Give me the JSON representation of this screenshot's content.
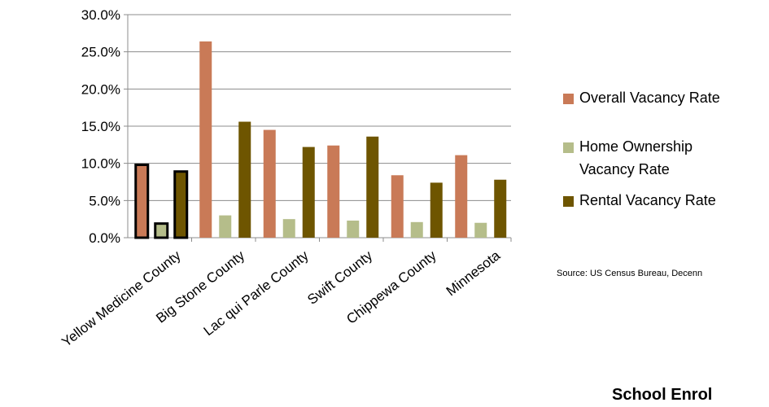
{
  "chart_data": {
    "type": "bar",
    "categories": [
      "Yellow Medicine County",
      "Big Stone County",
      "Lac qui Parle County",
      "Swift County",
      "Chippewa County",
      "Minnesota"
    ],
    "series": [
      {
        "name": "Overall Vacancy Rate",
        "color": "#C97A57",
        "values": [
          9.8,
          26.4,
          14.5,
          12.4,
          8.4,
          11.1
        ]
      },
      {
        "name": "Home Ownership Vacancy Rate",
        "color": "#B5BD8A",
        "values": [
          1.9,
          3.0,
          2.5,
          2.3,
          2.1,
          2.0
        ]
      },
      {
        "name": "Rental Vacancy Rate",
        "color": "#6E5500",
        "values": [
          8.9,
          15.6,
          12.2,
          13.6,
          7.4,
          7.8
        ]
      }
    ],
    "ylim": [
      0,
      30
    ],
    "yticks": [
      "0.0%",
      "5.0%",
      "10.0%",
      "15.0%",
      "20.0%",
      "25.0%",
      "30.0%"
    ],
    "grid": true,
    "legend_position": "right",
    "highlighted_category": "Yellow Medicine County"
  },
  "legend": {
    "items": [
      {
        "lines": [
          "Overall Vacancy Rate"
        ]
      },
      {
        "lines": [
          "Home Ownership",
          "Vacancy Rate"
        ]
      },
      {
        "lines": [
          "Rental Vacancy Rate"
        ]
      }
    ]
  },
  "source_text": "Source: US Census Bureau, Decenn",
  "next_section_title": "School Enrol"
}
